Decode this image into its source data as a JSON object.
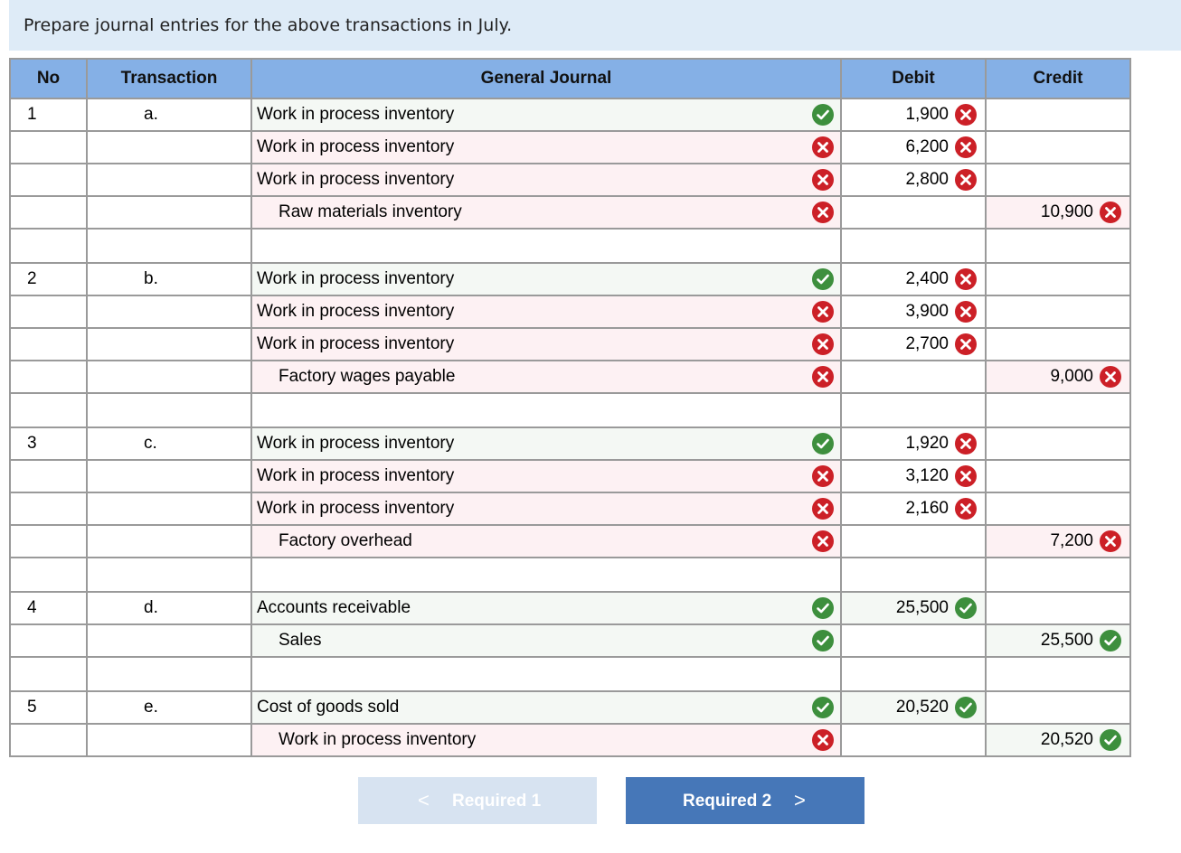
{
  "instruction": "Prepare journal entries for the above transactions in July.",
  "headers": {
    "no": "No",
    "transaction": "Transaction",
    "journal": "General Journal",
    "debit": "Debit",
    "credit": "Credit"
  },
  "rows": [
    {
      "no": "1",
      "tr": "a.",
      "account": "Work in process inventory",
      "indent": false,
      "acct_ok": true,
      "debit": "1,900",
      "debit_ok": false,
      "credit": "",
      "credit_ok": null
    },
    {
      "no": "",
      "tr": "",
      "account": "Work in process inventory",
      "indent": false,
      "acct_ok": false,
      "debit": "6,200",
      "debit_ok": false,
      "credit": "",
      "credit_ok": null
    },
    {
      "no": "",
      "tr": "",
      "account": "Work in process inventory",
      "indent": false,
      "acct_ok": false,
      "debit": "2,800",
      "debit_ok": false,
      "credit": "",
      "credit_ok": null
    },
    {
      "no": "",
      "tr": "",
      "account": "Raw materials inventory",
      "indent": true,
      "acct_ok": false,
      "debit": "",
      "debit_ok": null,
      "credit": "10,900",
      "credit_ok": false
    },
    {
      "no": "",
      "tr": "",
      "account": "",
      "indent": false,
      "acct_ok": null,
      "debit": "",
      "debit_ok": null,
      "credit": "",
      "credit_ok": null
    },
    {
      "no": "2",
      "tr": "b.",
      "account": "Work in process inventory",
      "indent": false,
      "acct_ok": true,
      "debit": "2,400",
      "debit_ok": false,
      "credit": "",
      "credit_ok": null
    },
    {
      "no": "",
      "tr": "",
      "account": "Work in process inventory",
      "indent": false,
      "acct_ok": false,
      "debit": "3,900",
      "debit_ok": false,
      "credit": "",
      "credit_ok": null
    },
    {
      "no": "",
      "tr": "",
      "account": "Work in process inventory",
      "indent": false,
      "acct_ok": false,
      "debit": "2,700",
      "debit_ok": false,
      "credit": "",
      "credit_ok": null
    },
    {
      "no": "",
      "tr": "",
      "account": "Factory wages payable",
      "indent": true,
      "acct_ok": false,
      "debit": "",
      "debit_ok": null,
      "credit": "9,000",
      "credit_ok": false
    },
    {
      "no": "",
      "tr": "",
      "account": "",
      "indent": false,
      "acct_ok": null,
      "debit": "",
      "debit_ok": null,
      "credit": "",
      "credit_ok": null
    },
    {
      "no": "3",
      "tr": "c.",
      "account": "Work in process inventory",
      "indent": false,
      "acct_ok": true,
      "debit": "1,920",
      "debit_ok": false,
      "credit": "",
      "credit_ok": null
    },
    {
      "no": "",
      "tr": "",
      "account": "Work in process inventory",
      "indent": false,
      "acct_ok": false,
      "debit": "3,120",
      "debit_ok": false,
      "credit": "",
      "credit_ok": null
    },
    {
      "no": "",
      "tr": "",
      "account": "Work in process inventory",
      "indent": false,
      "acct_ok": false,
      "debit": "2,160",
      "debit_ok": false,
      "credit": "",
      "credit_ok": null
    },
    {
      "no": "",
      "tr": "",
      "account": "Factory overhead",
      "indent": true,
      "acct_ok": false,
      "debit": "",
      "debit_ok": null,
      "credit": "7,200",
      "credit_ok": false
    },
    {
      "no": "",
      "tr": "",
      "account": "",
      "indent": false,
      "acct_ok": null,
      "debit": "",
      "debit_ok": null,
      "credit": "",
      "credit_ok": null
    },
    {
      "no": "4",
      "tr": "d.",
      "account": "Accounts receivable",
      "indent": false,
      "acct_ok": true,
      "debit": "25,500",
      "debit_ok": true,
      "credit": "",
      "credit_ok": null
    },
    {
      "no": "",
      "tr": "",
      "account": "Sales",
      "indent": true,
      "acct_ok": true,
      "debit": "",
      "debit_ok": null,
      "credit": "25,500",
      "credit_ok": true
    },
    {
      "no": "",
      "tr": "",
      "account": "",
      "indent": false,
      "acct_ok": null,
      "debit": "",
      "debit_ok": null,
      "credit": "",
      "credit_ok": null
    },
    {
      "no": "5",
      "tr": "e.",
      "account": "Cost of goods sold",
      "indent": false,
      "acct_ok": true,
      "debit": "20,520",
      "debit_ok": true,
      "credit": "",
      "credit_ok": null
    },
    {
      "no": "",
      "tr": "",
      "account": "Work in process inventory",
      "indent": true,
      "acct_ok": false,
      "debit": "",
      "debit_ok": null,
      "credit": "20,520",
      "credit_ok": true
    }
  ],
  "nav": {
    "prev_label": "Required 1",
    "next_label": "Required 2",
    "prev_icon": "chevron-left-icon",
    "next_icon": "chevron-right-icon"
  },
  "colors": {
    "header_bg": "#85b0e6",
    "banner_bg": "#deebf7",
    "correct": "#3d8f3d",
    "incorrect": "#cc2027",
    "next_button": "#4677b8",
    "prev_button": "#d7e3f1"
  }
}
